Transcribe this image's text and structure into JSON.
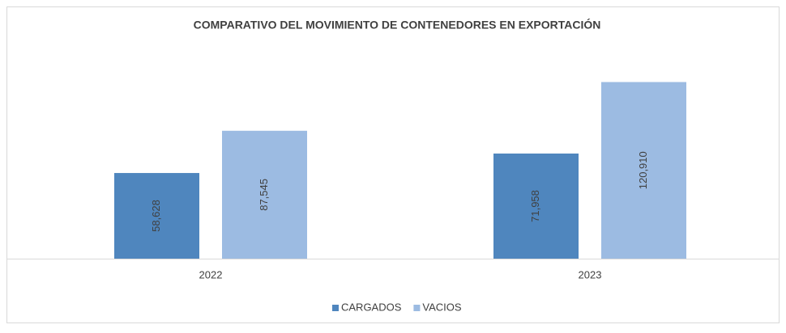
{
  "chart_data": {
    "type": "bar",
    "title": "COMPARATIVO DEL MOVIMIENTO DE CONTENEDORES EN EXPORTACIÓN",
    "categories": [
      "2022",
      "2023"
    ],
    "series": [
      {
        "name": "CARGADOS",
        "color": "#4f86be",
        "values": [
          58628,
          71958
        ],
        "value_labels": [
          "58,628",
          "71,958"
        ]
      },
      {
        "name": "VACIOS",
        "color": "#9cbbe2",
        "values": [
          87545,
          120910
        ],
        "value_labels": [
          "87,545",
          "120,910"
        ]
      }
    ],
    "ylim": [
      0,
      140000
    ],
    "legend": "bottom"
  }
}
